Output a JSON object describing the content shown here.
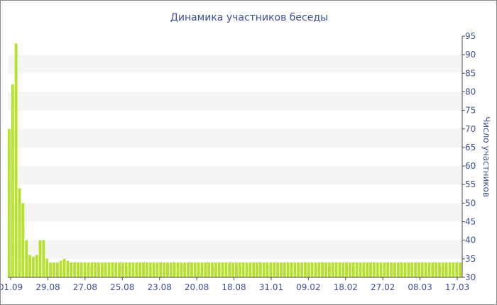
{
  "chart_data": {
    "type": "bar",
    "title": "Динамика участников беседы",
    "xlabel": "",
    "ylabel": "Число участников",
    "ylim": [
      30,
      95
    ],
    "y_ticks": [
      30,
      35,
      40,
      45,
      50,
      55,
      60,
      65,
      70,
      75,
      80,
      85,
      90,
      95
    ],
    "x_tick_labels": [
      "01.09",
      "29.08",
      "27.08",
      "25.08",
      "23.08",
      "20.08",
      "18.08",
      "31.01",
      "09.02",
      "18.02",
      "27.02",
      "08.03",
      "17.03"
    ],
    "grid": "horizontal alternating bands",
    "values": [
      70,
      82,
      93,
      54,
      50,
      40,
      36,
      35.5,
      36,
      40,
      40,
      35,
      34,
      34,
      34,
      34.5,
      35,
      34.5,
      34,
      34,
      34,
      34,
      34,
      34,
      34,
      34,
      34,
      34,
      34,
      34,
      34,
      34,
      34,
      34,
      34,
      34,
      34,
      34,
      34,
      34,
      34,
      34,
      34,
      34,
      34,
      34,
      34,
      34,
      34,
      34,
      34,
      34,
      34,
      34,
      34,
      34,
      34,
      34,
      34,
      34,
      34,
      34,
      34,
      34,
      34,
      34,
      34,
      34,
      34,
      34,
      34,
      34,
      34,
      34,
      34,
      34,
      34,
      34,
      34,
      34,
      34,
      34,
      34,
      34,
      34,
      34,
      34,
      34,
      34,
      34,
      34,
      34,
      34,
      34,
      34,
      34,
      34,
      34,
      34,
      34,
      34,
      34,
      34,
      34,
      34,
      34,
      34,
      34,
      34,
      34,
      34,
      34,
      34,
      34,
      34,
      34,
      34,
      34,
      34,
      34,
      34,
      34,
      34,
      34,
      34,
      34,
      34,
      34,
      34,
      34,
      34,
      34
    ]
  },
  "colors": {
    "bar": "#b5e02e",
    "band": "#f5f5f5",
    "text": "#3e4f99",
    "axis": "#4a4a4a"
  }
}
